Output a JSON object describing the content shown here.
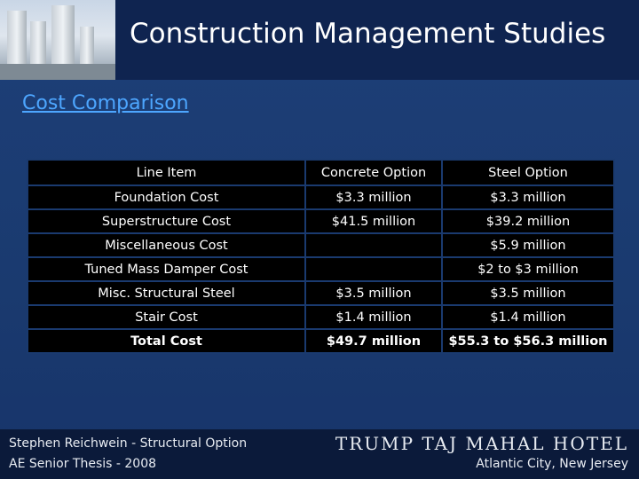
{
  "header": {
    "title": "Construction Management Studies"
  },
  "section": {
    "subtitle": "Cost Comparison"
  },
  "table": {
    "columns": [
      "Line Item",
      "Concrete Option",
      "Steel Option"
    ],
    "rows": [
      [
        "Foundation Cost",
        "$3.3 million",
        "$3.3 million"
      ],
      [
        "Superstructure Cost",
        "$41.5 million",
        "$39.2 million"
      ],
      [
        "Miscellaneous Cost",
        "",
        "$5.9 million"
      ],
      [
        "Tuned Mass Damper Cost",
        "",
        "$2 to $3 million"
      ],
      [
        "Misc. Structural Steel",
        "$3.5 million",
        "$3.5 million"
      ],
      [
        "Stair Cost",
        "$1.4 million",
        "$1.4 million"
      ],
      [
        "Total Cost",
        "$49.7 million",
        "$55.3 to $56.3 million"
      ]
    ]
  },
  "footer": {
    "author": "Stephen Reichwein - Structural Option",
    "thesis": "AE Senior Thesis - 2008",
    "project": "Trump Taj Mahal Hotel",
    "location": "Atlantic City, New Jersey"
  },
  "colors": {
    "background": "#1b3a70",
    "subtitle": "#4da6ff",
    "table_bg": "#000000"
  },
  "icons": {
    "header_photo": "hotel-photo"
  }
}
